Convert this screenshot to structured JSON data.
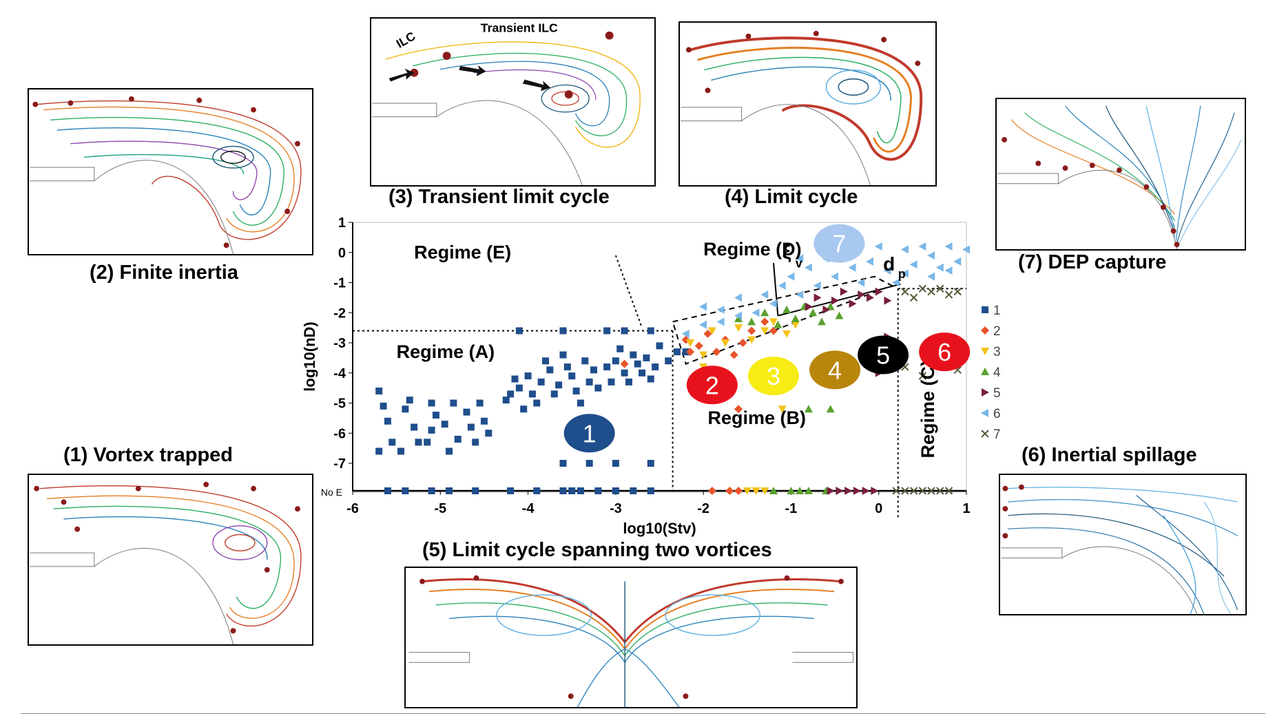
{
  "panels": {
    "finite_inertia": "(2) Finite inertia",
    "transient": "(3) Transient limit cycle",
    "limit_cycle": "(4) Limit cycle",
    "dep_capture": "(7) DEP capture",
    "vortex_trapped": "(1) Vortex trapped",
    "two_vortices": "(5) Limit cycle spanning two vortices",
    "inertial_spillage": "(6) Inertial spillage",
    "ilc_label": "ILC",
    "transient_ilc_label": "Transient ILC"
  },
  "colors": {
    "s1": "#1f4e8c",
    "s2": "#e8542a",
    "s3": "#f4c21a",
    "s4": "#5aa12e",
    "s5": "#7a1f3d",
    "s6": "#7ab8e8",
    "s7": "#5a5a3a"
  },
  "chart_data": {
    "type": "scatter",
    "xlabel": "log10(Stv)",
    "ylabel": "log10(nD)",
    "xlim": [
      -6,
      1
    ],
    "ylim": [
      -7,
      1
    ],
    "xticks": [
      "-6",
      "-5",
      "-4",
      "-3",
      "-2",
      "-1",
      "0",
      "1"
    ],
    "yticks": [
      "1",
      "0",
      "-1",
      "-2",
      "-3",
      "-4",
      "-5",
      "-6",
      "-7"
    ],
    "no_e_label": "No E",
    "legend": [
      "1",
      "2",
      "3",
      "4",
      "5",
      "6",
      "7"
    ],
    "regimes": [
      "Regime (A)",
      "Regime (B)",
      "Regime (C)",
      "Regime (D)",
      "Regime (E)"
    ],
    "annotations": [
      "ξ",
      "v",
      "d",
      "p"
    ],
    "badges": [
      "1",
      "2",
      "3",
      "4",
      "5",
      "6",
      "7"
    ],
    "series": [
      {
        "name": "1",
        "points": [
          [
            -5.7,
            -4.6
          ],
          [
            -5.65,
            -5.1
          ],
          [
            -5.6,
            -5.6
          ],
          [
            -5.7,
            -6.6
          ],
          [
            -5.55,
            -6.3
          ],
          [
            -5.4,
            -5.2
          ],
          [
            -5.35,
            -4.9
          ],
          [
            -5.3,
            -5.8
          ],
          [
            -5.25,
            -6.3
          ],
          [
            -5.45,
            -6.6
          ],
          [
            -5.1,
            -5.0
          ],
          [
            -5.05,
            -5.4
          ],
          [
            -5.1,
            -5.9
          ],
          [
            -5.15,
            -6.3
          ],
          [
            -4.95,
            -5.7
          ],
          [
            -4.9,
            -6.6
          ],
          [
            -4.85,
            -5.0
          ],
          [
            -4.8,
            -6.2
          ],
          [
            -4.7,
            -5.3
          ],
          [
            -4.65,
            -5.8
          ],
          [
            -4.6,
            -6.3
          ],
          [
            -4.55,
            -5.0
          ],
          [
            -4.5,
            -5.6
          ],
          [
            -4.45,
            -6.0
          ],
          [
            -4.25,
            -4.9
          ],
          [
            -4.2,
            -4.7
          ],
          [
            -4.15,
            -4.2
          ],
          [
            -4.1,
            -4.5
          ],
          [
            -4.05,
            -5.2
          ],
          [
            -4.0,
            -4.1
          ],
          [
            -3.95,
            -4.7
          ],
          [
            -3.9,
            -5.0
          ],
          [
            -3.85,
            -4.3
          ],
          [
            -3.8,
            -3.6
          ],
          [
            -3.75,
            -3.9
          ],
          [
            -3.7,
            -4.7
          ],
          [
            -3.65,
            -4.4
          ],
          [
            -3.6,
            -3.4
          ],
          [
            -3.55,
            -3.8
          ],
          [
            -3.5,
            -4.1
          ],
          [
            -3.45,
            -4.6
          ],
          [
            -3.4,
            -5.0
          ],
          [
            -3.35,
            -3.6
          ],
          [
            -3.3,
            -4.3
          ],
          [
            -3.25,
            -3.9
          ],
          [
            -3.2,
            -4.5
          ],
          [
            -3.1,
            -3.8
          ],
          [
            -3.05,
            -4.3
          ],
          [
            -3.0,
            -3.6
          ],
          [
            -2.95,
            -3.2
          ],
          [
            -2.9,
            -4.0
          ],
          [
            -2.85,
            -4.3
          ],
          [
            -2.8,
            -3.4
          ],
          [
            -2.75,
            -3.7
          ],
          [
            -2.7,
            -4.0
          ],
          [
            -2.65,
            -3.5
          ],
          [
            -2.6,
            -4.2
          ],
          [
            -2.55,
            -3.8
          ],
          [
            -2.5,
            -3.1
          ],
          [
            -2.4,
            -3.6
          ],
          [
            -2.3,
            -3.3
          ],
          [
            -4.1,
            -2.6
          ],
          [
            -3.6,
            -2.6
          ],
          [
            -3.1,
            -2.6
          ],
          [
            -2.9,
            -2.6
          ],
          [
            -2.6,
            -2.6
          ],
          [
            -3.6,
            -7.0
          ],
          [
            -3.3,
            -7.0
          ],
          [
            -3.0,
            -7.0
          ],
          [
            -2.6,
            -7.0
          ],
          [
            -2.2,
            -3.3
          ]
        ]
      },
      {
        "name": "2",
        "points": [
          [
            -2.2,
            -2.9
          ],
          [
            -2.15,
            -3.3
          ],
          [
            -2.05,
            -3.1
          ],
          [
            -1.95,
            -2.7
          ],
          [
            -1.85,
            -3.3
          ],
          [
            -1.75,
            -2.9
          ],
          [
            -1.65,
            -3.4
          ],
          [
            -1.55,
            -3.0
          ],
          [
            -1.45,
            -2.6
          ],
          [
            -1.3,
            -2.3
          ],
          [
            -1.2,
            -2.6
          ],
          [
            -2.9,
            -3.7
          ],
          [
            -1.6,
            -5.2
          ]
        ]
      },
      {
        "name": "3",
        "points": [
          [
            -2.15,
            -3.0
          ],
          [
            -2.0,
            -3.4
          ],
          [
            -1.9,
            -2.6
          ],
          [
            -1.75,
            -3.0
          ],
          [
            -1.6,
            -2.5
          ],
          [
            -1.45,
            -2.9
          ],
          [
            -1.3,
            -2.6
          ],
          [
            -1.2,
            -2.3
          ],
          [
            -1.05,
            -2.7
          ],
          [
            -0.95,
            -2.4
          ],
          [
            -2.0,
            -3.8
          ],
          [
            -1.1,
            -5.2
          ]
        ]
      },
      {
        "name": "4",
        "points": [
          [
            -1.45,
            -2.3
          ],
          [
            -1.3,
            -2.0
          ],
          [
            -1.15,
            -2.4
          ],
          [
            -1.05,
            -1.9
          ],
          [
            -0.95,
            -2.2
          ],
          [
            -0.85,
            -1.8
          ],
          [
            -0.75,
            -2.0
          ],
          [
            -0.65,
            -2.3
          ],
          [
            -0.55,
            -1.8
          ],
          [
            -0.45,
            -2.1
          ],
          [
            -1.6,
            -2.2
          ],
          [
            -0.8,
            -5.2
          ],
          [
            -0.55,
            -5.2
          ]
        ]
      },
      {
        "name": "5",
        "points": [
          [
            -0.8,
            -1.8
          ],
          [
            -0.7,
            -1.5
          ],
          [
            -0.6,
            -1.9
          ],
          [
            -0.5,
            -1.6
          ],
          [
            -0.4,
            -1.3
          ],
          [
            -0.3,
            -1.7
          ],
          [
            -0.2,
            -1.4
          ],
          [
            -0.1,
            -1.5
          ],
          [
            0.0,
            -1.3
          ],
          [
            0.1,
            -1.6
          ],
          [
            -0.4,
            -3.9
          ],
          [
            0.0,
            -4.0
          ],
          [
            0.1,
            -2.8
          ]
        ]
      },
      {
        "name": "6",
        "points": [
          [
            -2.2,
            -2.7
          ],
          [
            -2.0,
            -2.4
          ],
          [
            -1.8,
            -2.3
          ],
          [
            -1.6,
            -2.1
          ],
          [
            -1.4,
            -2.0
          ],
          [
            -1.3,
            -1.4
          ],
          [
            -1.2,
            -1.7
          ],
          [
            -1.0,
            -0.8
          ],
          [
            -0.9,
            -1.4
          ],
          [
            -0.8,
            -0.5
          ],
          [
            -0.7,
            -1.1
          ],
          [
            -0.6,
            -0.2
          ],
          [
            -0.5,
            -0.8
          ],
          [
            -0.4,
            0.1
          ],
          [
            -0.3,
            -0.5
          ],
          [
            -0.2,
            -1.0
          ],
          [
            -0.1,
            -0.3
          ],
          [
            0.0,
            0.2
          ],
          [
            0.1,
            -0.6
          ],
          [
            0.2,
            -1.0
          ],
          [
            0.3,
            0.1
          ],
          [
            0.4,
            -0.4
          ],
          [
            0.5,
            0.2
          ],
          [
            0.6,
            -0.1
          ],
          [
            0.7,
            -0.5
          ],
          [
            0.8,
            0.2
          ],
          [
            0.9,
            -0.3
          ],
          [
            1.0,
            0.1
          ],
          [
            -1.6,
            -1.5
          ],
          [
            -1.8,
            -1.9
          ],
          [
            -1.1,
            -1.1
          ],
          [
            -0.9,
            -0.2
          ],
          [
            0.3,
            -0.7
          ],
          [
            0.6,
            -0.8
          ],
          [
            0.8,
            -0.6
          ],
          [
            -2.0,
            -1.8
          ]
        ]
      },
      {
        "name": "7",
        "points": [
          [
            0.3,
            -1.3
          ],
          [
            0.4,
            -1.5
          ],
          [
            0.5,
            -1.2
          ],
          [
            0.6,
            -1.3
          ],
          [
            0.7,
            -1.2
          ],
          [
            0.8,
            -1.4
          ],
          [
            0.9,
            -1.3
          ],
          [
            0.3,
            -3.8
          ],
          [
            0.5,
            -4.1
          ],
          [
            0.7,
            -3.7
          ],
          [
            0.9,
            -3.9
          ],
          [
            0.2,
            -3.5
          ]
        ]
      }
    ],
    "no_e_points": [
      {
        "series": "1",
        "x": [
          -5.6,
          -5.4,
          -5.1,
          -4.9,
          -4.6,
          -4.2,
          -3.9,
          -3.6,
          -3.5,
          -3.4,
          -3.2,
          -3.0,
          -2.8,
          -2.6
        ]
      },
      {
        "series": "2",
        "x": [
          -1.9,
          -1.7,
          -1.6
        ]
      },
      {
        "series": "3",
        "x": [
          -1.5,
          -1.4,
          -1.3
        ]
      },
      {
        "series": "4",
        "x": [
          -1.2,
          -1.0,
          -0.9,
          -0.8,
          -0.6
        ]
      },
      {
        "series": "5",
        "x": [
          -0.55,
          -0.45,
          -0.35,
          -0.25,
          -0.15,
          -0.05
        ]
      },
      {
        "series": "7",
        "x": [
          0.2,
          0.3,
          0.4,
          0.5,
          0.6,
          0.7,
          0.8
        ]
      }
    ]
  }
}
